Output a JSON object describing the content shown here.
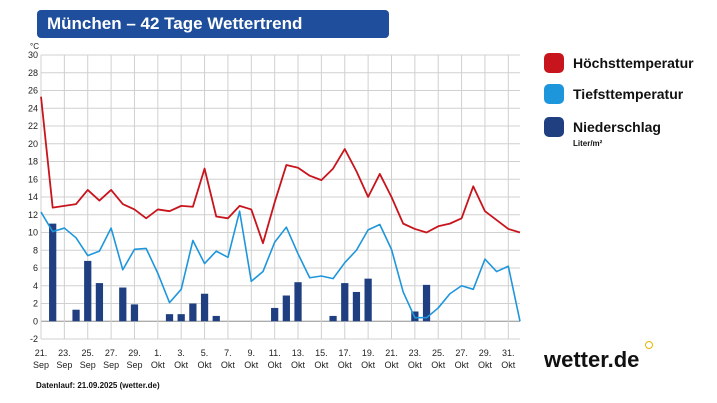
{
  "title": "München – 42 Tage Wettertrend",
  "legend": {
    "high": "Höchsttemperatur",
    "low": "Tiefsttemperatur",
    "precip": "Niederschlag",
    "precip_unit": "Liter/m²"
  },
  "brand": "wetter.de",
  "footer": "Datenlauf: 21.09.2025 (wetter.de)",
  "colors": {
    "title_bg": "#1f4f9c",
    "high": "#c8141c",
    "low": "#1e96dc",
    "precip": "#1f3f80",
    "grid": "#d0d0d0",
    "brand_dot": "#e8b400"
  },
  "chart_data": {
    "type": "line",
    "y_unit": "°C",
    "ylim": [
      -2,
      30
    ],
    "yticks": [
      -2,
      0,
      2,
      4,
      6,
      8,
      10,
      12,
      14,
      16,
      18,
      20,
      22,
      24,
      26,
      28,
      30
    ],
    "x_tick_labels": [
      [
        "21.",
        "Sep"
      ],
      [
        "23.",
        "Sep"
      ],
      [
        "25.",
        "Sep"
      ],
      [
        "27.",
        "Sep"
      ],
      [
        "29.",
        "Sep"
      ],
      [
        "1.",
        "Okt"
      ],
      [
        "3.",
        "Okt"
      ],
      [
        "5.",
        "Okt"
      ],
      [
        "7.",
        "Okt"
      ],
      [
        "9.",
        "Okt"
      ],
      [
        "11.",
        "Okt"
      ],
      [
        "13.",
        "Okt"
      ],
      [
        "15.",
        "Okt"
      ],
      [
        "17.",
        "Okt"
      ],
      [
        "19.",
        "Okt"
      ],
      [
        "21.",
        "Okt"
      ],
      [
        "23.",
        "Okt"
      ],
      [
        "25.",
        "Okt"
      ],
      [
        "27.",
        "Okt"
      ],
      [
        "29.",
        "Okt"
      ],
      [
        "31.",
        "Okt"
      ]
    ],
    "grid": true,
    "legend_position": "right",
    "series": [
      {
        "name": "Höchsttemperatur",
        "values": [
          25.3,
          12.8,
          13.0,
          13.2,
          14.8,
          13.6,
          14.8,
          13.2,
          12.6,
          11.6,
          12.6,
          12.4,
          13.0,
          12.9,
          17.2,
          11.8,
          11.6,
          13.0,
          12.6,
          8.8,
          13.4,
          17.6,
          17.3,
          16.4,
          15.9,
          17.2,
          19.4,
          16.9,
          14.0,
          16.6,
          14.0,
          11.0,
          10.4,
          10.0,
          10.7,
          11.0,
          11.6,
          15.2,
          12.4,
          11.4,
          10.4,
          10.0
        ]
      },
      {
        "name": "Tiefsttemperatur",
        "values": [
          12.3,
          10.1,
          10.5,
          9.4,
          7.4,
          7.9,
          10.5,
          5.8,
          8.1,
          8.2,
          5.4,
          2.1,
          3.6,
          9.1,
          6.5,
          7.9,
          7.2,
          12.4,
          4.5,
          5.6,
          8.9,
          10.6,
          7.6,
          4.9,
          5.1,
          4.8,
          6.6,
          8.0,
          10.3,
          10.9,
          8.1,
          3.3,
          0.4,
          0.4,
          1.5,
          3.1,
          4.0,
          3.6,
          7.0,
          5.6,
          6.2,
          0.0
        ]
      },
      {
        "name": "Niederschlag",
        "kind": "bar",
        "values": [
          0,
          11.0,
          0,
          1.3,
          6.8,
          4.3,
          0,
          3.8,
          1.9,
          0,
          0,
          0.8,
          0.8,
          2.0,
          3.1,
          0.6,
          0,
          0,
          0,
          0,
          1.5,
          2.9,
          4.4,
          0,
          0,
          0.6,
          4.3,
          3.3,
          4.8,
          0,
          0,
          0,
          1.1,
          4.1,
          0,
          0,
          0,
          0,
          0,
          0,
          0,
          0
        ]
      }
    ]
  }
}
